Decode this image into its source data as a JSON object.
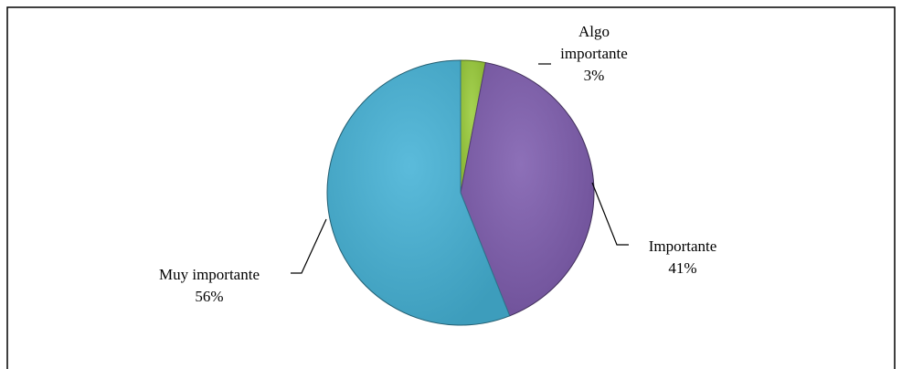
{
  "chart_data": {
    "type": "pie",
    "title": "",
    "start_angle_deg": 0,
    "direction": "clockwise",
    "slices": [
      {
        "name_lines": [
          "Algo",
          "importante"
        ],
        "value": 3,
        "value_label": "3%",
        "color": "#9ACD3A"
      },
      {
        "name_lines": [
          "Importante"
        ],
        "value": 41,
        "value_label": "41%",
        "color": "#7E5CAE"
      },
      {
        "name_lines": [
          "Muy importante"
        ],
        "value": 56,
        "value_label": "56%",
        "color": "#45B2D6"
      }
    ],
    "legend": "none",
    "labels_outside_with_leader_lines": true
  }
}
